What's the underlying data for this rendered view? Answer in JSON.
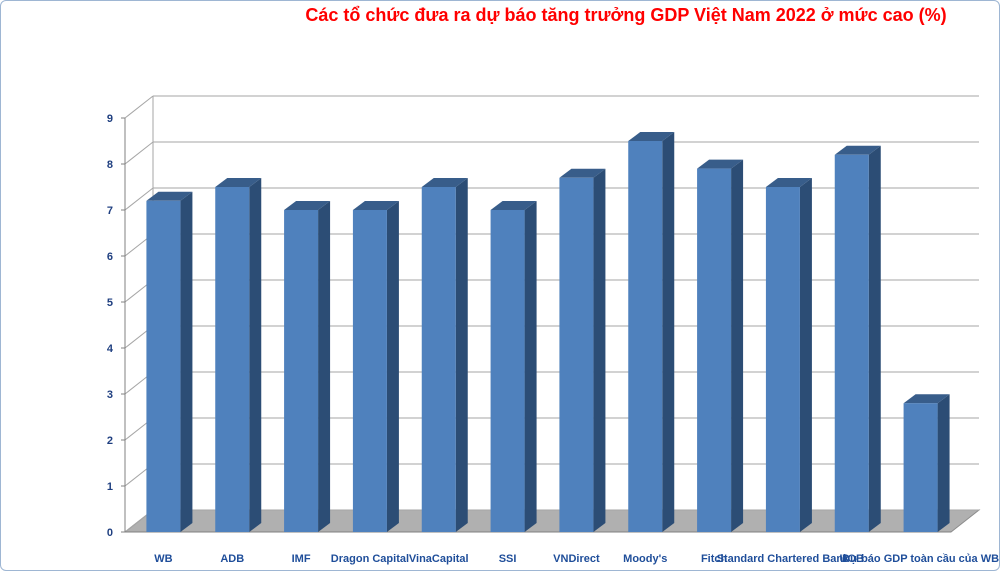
{
  "chart_data": {
    "type": "bar",
    "title": "Các tổ chức đưa ra dự báo tăng trưởng GDP Việt Nam 2022 ở mức cao (%)",
    "categories": [
      "WB",
      "ADB",
      "IMF",
      "Dragon Capital",
      "VinaCapital",
      "SSI",
      "VNDirect",
      "Moody's",
      "Fitch",
      "Standard Chartered Bank",
      "UOB",
      "Dự báo GDP toàn cầu của WB"
    ],
    "values": [
      7.2,
      7.5,
      7.0,
      7.0,
      7.5,
      7.0,
      7.7,
      8.5,
      7.9,
      7.5,
      8.2,
      2.8
    ],
    "ylim": [
      0,
      9
    ],
    "yticks": [
      0,
      1,
      2,
      3,
      4,
      5,
      6,
      7,
      8,
      9
    ],
    "xlabel": "",
    "ylabel": "",
    "grid": true,
    "legend": "none",
    "colors": {
      "bar_front": "#4f81bd",
      "bar_side": "#2c4d75",
      "bar_top": "#385d8a",
      "grid": "#a6a6a6",
      "floor": "#b0b0b0",
      "title": "#ff0000"
    }
  }
}
